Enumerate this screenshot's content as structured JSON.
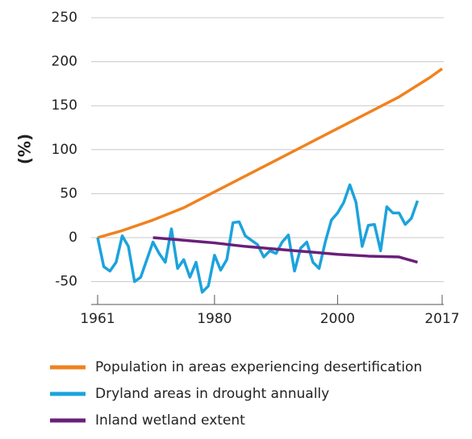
{
  "chart_data": {
    "type": "line",
    "ylabel": "(%)",
    "ylim": [
      -76,
      250
    ],
    "yticks": [
      -50,
      0,
      50,
      100,
      150,
      200,
      250
    ],
    "xlim": [
      1961,
      2017
    ],
    "xticks": [
      1961,
      1980,
      2000,
      2017
    ],
    "grid": true,
    "legend": "bottom",
    "series": [
      {
        "name": "Population in areas experiencing desertification",
        "color": "#f0821e",
        "x": [
          1961,
          1965,
          1970,
          1975,
          1980,
          1985,
          1990,
          1995,
          2000,
          2005,
          2010,
          2015,
          2017
        ],
        "values": [
          0,
          8,
          20,
          34,
          52,
          70,
          88,
          106,
          124,
          142,
          160,
          182,
          192
        ]
      },
      {
        "name": "Dryland areas in drought annually",
        "color": "#1ca3dc",
        "x": [
          1961,
          1962,
          1963,
          1964,
          1965,
          1966,
          1967,
          1968,
          1969,
          1970,
          1971,
          1972,
          1973,
          1974,
          1975,
          1976,
          1977,
          1978,
          1979,
          1980,
          1981,
          1982,
          1983,
          1984,
          1985,
          1986,
          1987,
          1988,
          1989,
          1990,
          1991,
          1992,
          1993,
          1994,
          1995,
          1996,
          1997,
          1998,
          1999,
          2000,
          2001,
          2002,
          2003,
          2004,
          2005,
          2006,
          2007,
          2008,
          2009,
          2010,
          2011,
          2012,
          2013
        ],
        "values": [
          0,
          -33,
          -38,
          -28,
          2,
          -10,
          -50,
          -45,
          -25,
          -5,
          -18,
          -28,
          10,
          -35,
          -25,
          -45,
          -28,
          -62,
          -55,
          -20,
          -37,
          -25,
          17,
          18,
          2,
          -3,
          -8,
          -22,
          -15,
          -18,
          -5,
          3,
          -38,
          -12,
          -5,
          -28,
          -35,
          -5,
          20,
          28,
          40,
          60,
          40,
          -10,
          14,
          15,
          -15,
          35,
          28,
          28,
          15,
          22,
          42
        ]
      },
      {
        "name": "Inland wetland extent",
        "color": "#6a1f7a",
        "x": [
          1970,
          1975,
          1980,
          1985,
          1990,
          1995,
          2000,
          2005,
          2010,
          2013
        ],
        "values": [
          0,
          -3,
          -6,
          -10,
          -13,
          -16,
          -19,
          -21,
          -22,
          -28
        ]
      }
    ]
  }
}
